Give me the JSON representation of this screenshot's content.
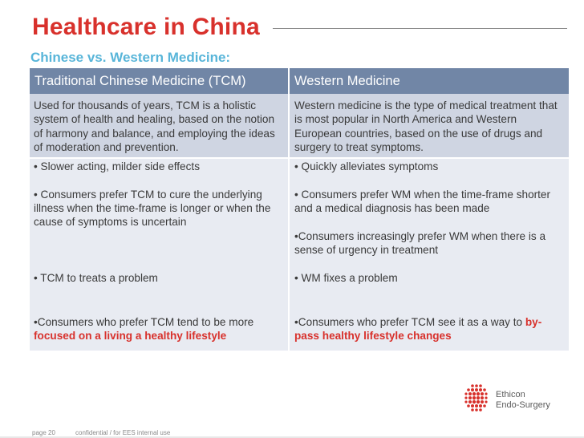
{
  "slide": {
    "title": "Healthcare in China",
    "subtitle": "Chinese vs. Western Medicine:"
  },
  "table": {
    "headers": [
      "Traditional Chinese Medicine (TCM)",
      "Western Medicine"
    ],
    "definitions": {
      "tcm": "Used for thousands of years, TCM is a holistic system of health and healing, based on the notion of harmony and balance, and employing the ideas of moderation and prevention.",
      "wm": "Western medicine is the type of medical treatment that is most popular in North America and Western European countries, based on the use of drugs and surgery to treat symptoms."
    },
    "tcm_points": {
      "p1": "• Slower acting, milder side effects",
      "p2": "• Consumers prefer TCM to cure the underlying illness when the time-frame is longer or when the cause of symptoms is uncertain",
      "p3": "• TCM to treats a problem",
      "p4_pre": "•Consumers who prefer TCM tend to be more ",
      "p4_hl": "focused on a living a healthy lifestyle"
    },
    "wm_points": {
      "p1": "• Quickly alleviates symptoms",
      "p2": "• Consumers prefer WM when the time-frame shorter and a medical diagnosis has been made",
      "p3": "•Consumers increasingly prefer WM when there is a sense of urgency in treatment",
      "p4": "• WM fixes a problem",
      "p5_pre": "•Consumers who prefer TCM see it as a way to ",
      "p5_hl": "by-pass healthy lifestyle changes"
    }
  },
  "logo": {
    "line1": "Ethicon",
    "line2": "Endo-Surgery"
  },
  "footer": {
    "page": "page 20",
    "confidential": "confidential / for EES internal use"
  },
  "colors": {
    "title": "#d8312c",
    "subtitle": "#58b5d9",
    "header_bg": "#7186a6",
    "row_dark": "#cfd5e2",
    "row_light": "#e8ebf2",
    "highlight": "#d8312c"
  }
}
